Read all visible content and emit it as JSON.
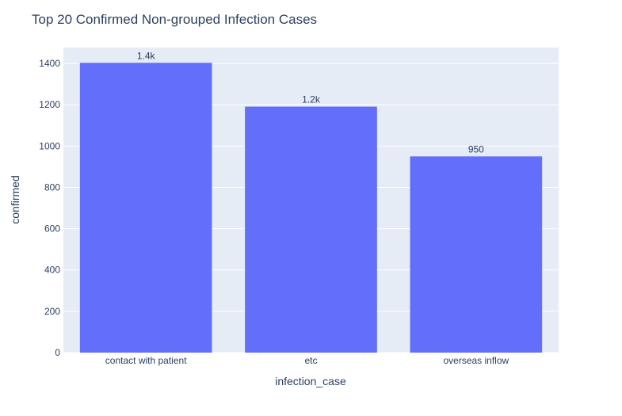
{
  "chart_data": {
    "type": "bar",
    "title": "Top 20 Confirmed Non-grouped Infection Cases",
    "xlabel": "infection_case",
    "ylabel": "confirmed",
    "categories": [
      "contact with patient",
      "etc",
      "overseas inflow"
    ],
    "values": [
      1403,
      1191,
      950
    ],
    "data_labels": [
      "1.4k",
      "1.2k",
      "950"
    ],
    "ylim": [
      0,
      1477
    ],
    "yticks": [
      0,
      200,
      400,
      600,
      800,
      1000,
      1200,
      1400
    ],
    "grid": true,
    "bar_color": "#636efa",
    "plot_background": "#e5ecf6",
    "text_color": "#2a3f5f"
  }
}
